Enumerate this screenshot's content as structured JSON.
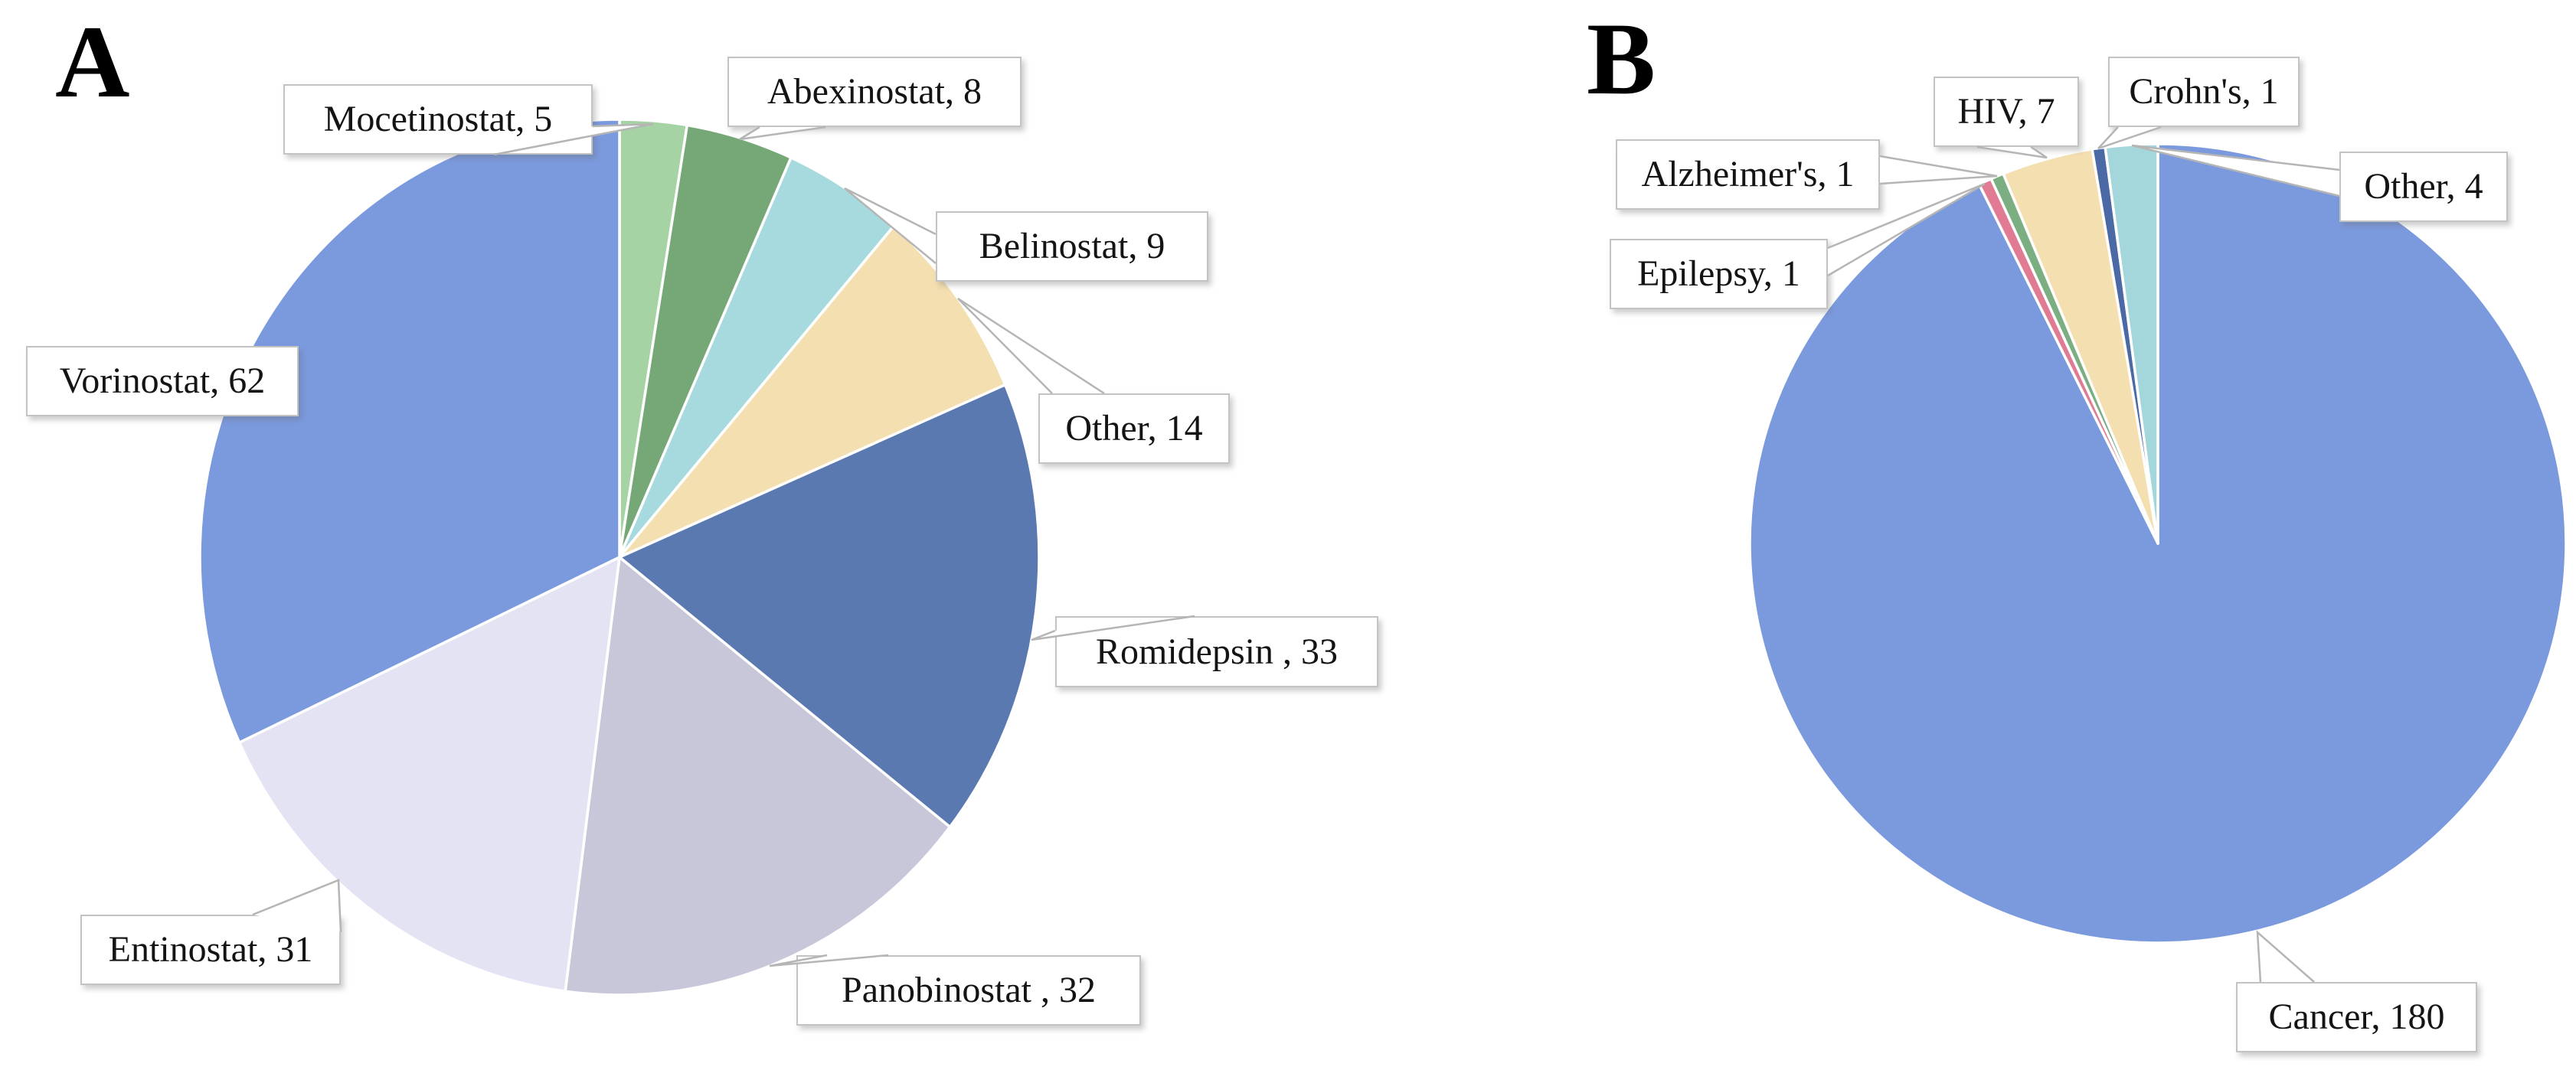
{
  "figure": {
    "background_color": "#ffffff",
    "panels": [
      {
        "label": "A"
      },
      {
        "label": "B"
      }
    ]
  },
  "chart_data": [
    {
      "type": "pie",
      "panel": "A",
      "start_angle_deg": 0,
      "direction": "clockwise",
      "total": 194,
      "labels_shown_as": "callout-boxes",
      "slices": [
        {
          "name": "Mocetinostat",
          "value": 5,
          "label_text": "Mocetinostat, 5",
          "color": "#a6d3a4"
        },
        {
          "name": "Abexinostat",
          "value": 8,
          "label_text": "Abexinostat, 8",
          "color": "#76a877"
        },
        {
          "name": "Belinostat",
          "value": 9,
          "label_text": "Belinostat, 9",
          "color": "#a6dade"
        },
        {
          "name": "Other",
          "value": 14,
          "label_text": "Other, 14",
          "color": "#f4dfb1"
        },
        {
          "name": "Romidepsin",
          "value": 33,
          "label_text": "Romidepsin , 33",
          "color": "#5b79b1"
        },
        {
          "name": "Panobinostat",
          "value": 32,
          "label_text": "Panobinostat , 32",
          "color": "#c8c7da"
        },
        {
          "name": "Entinostat",
          "value": 31,
          "label_text": "Entinostat, 31",
          "color": "#e4e3f3"
        },
        {
          "name": "Vorinostat",
          "value": 62,
          "label_text": "Vorinostat, 62",
          "color": "#7b9ade"
        }
      ]
    },
    {
      "type": "pie",
      "panel": "B",
      "start_angle_deg": 0,
      "direction": "clockwise",
      "total": 194,
      "labels_shown_as": "callout-boxes",
      "slices": [
        {
          "name": "Cancer",
          "value": 180,
          "label_text": "Cancer, 180",
          "color": "#7b9ade"
        },
        {
          "name": "Epilepsy",
          "value": 1,
          "label_text": "Epilepsy, 1",
          "color": "#e17b94"
        },
        {
          "name": "Alzheimer's",
          "value": 1,
          "label_text": "Alzheimer's, 1",
          "color": "#7bae80"
        },
        {
          "name": "HIV",
          "value": 7,
          "label_text": "HIV, 7",
          "color": "#f4dfb1"
        },
        {
          "name": "Crohn's",
          "value": 1,
          "label_text": "Crohn's, 1",
          "color": "#4a69a5"
        },
        {
          "name": "Other",
          "value": 4,
          "label_text": "Other, 4",
          "color": "#a4d7dc"
        }
      ]
    }
  ]
}
